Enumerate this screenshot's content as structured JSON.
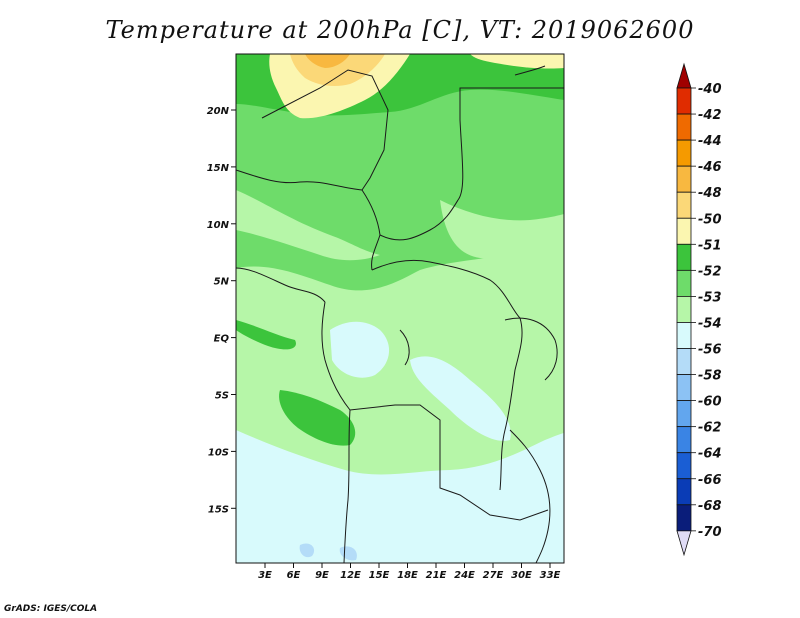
{
  "title": "Temperature at 200hPa [C], VT: 2019062600",
  "credit": "GrADS: IGES/COLA",
  "map": {
    "lat_ticks": [
      "20N",
      "15N",
      "10N",
      "5N",
      "EQ",
      "5S",
      "10S",
      "15S"
    ],
    "lon_ticks": [
      "3E",
      "6E",
      "9E",
      "12E",
      "15E",
      "18E",
      "21E",
      "24E",
      "27E",
      "30E",
      "33E"
    ]
  },
  "colorbar": {
    "labels": [
      "-40",
      "-42",
      "-44",
      "-46",
      "-48",
      "-50",
      "-51",
      "-52",
      "-53",
      "-54",
      "-56",
      "-58",
      "-60",
      "-62",
      "-64",
      "-66",
      "-68",
      "-70"
    ],
    "colors": [
      "#a00000",
      "#e02c00",
      "#ef6a00",
      "#f59a00",
      "#f8b840",
      "#fbd878",
      "#fbf6b0",
      "#3cc43c",
      "#6edc6a",
      "#b6f6a8",
      "#d8fafc",
      "#b4dcf8",
      "#8cc2f4",
      "#62a6ee",
      "#3a84e4",
      "#1a5ed4",
      "#0a3cb6",
      "#0a1d7a",
      "#e0dcf6"
    ]
  }
}
